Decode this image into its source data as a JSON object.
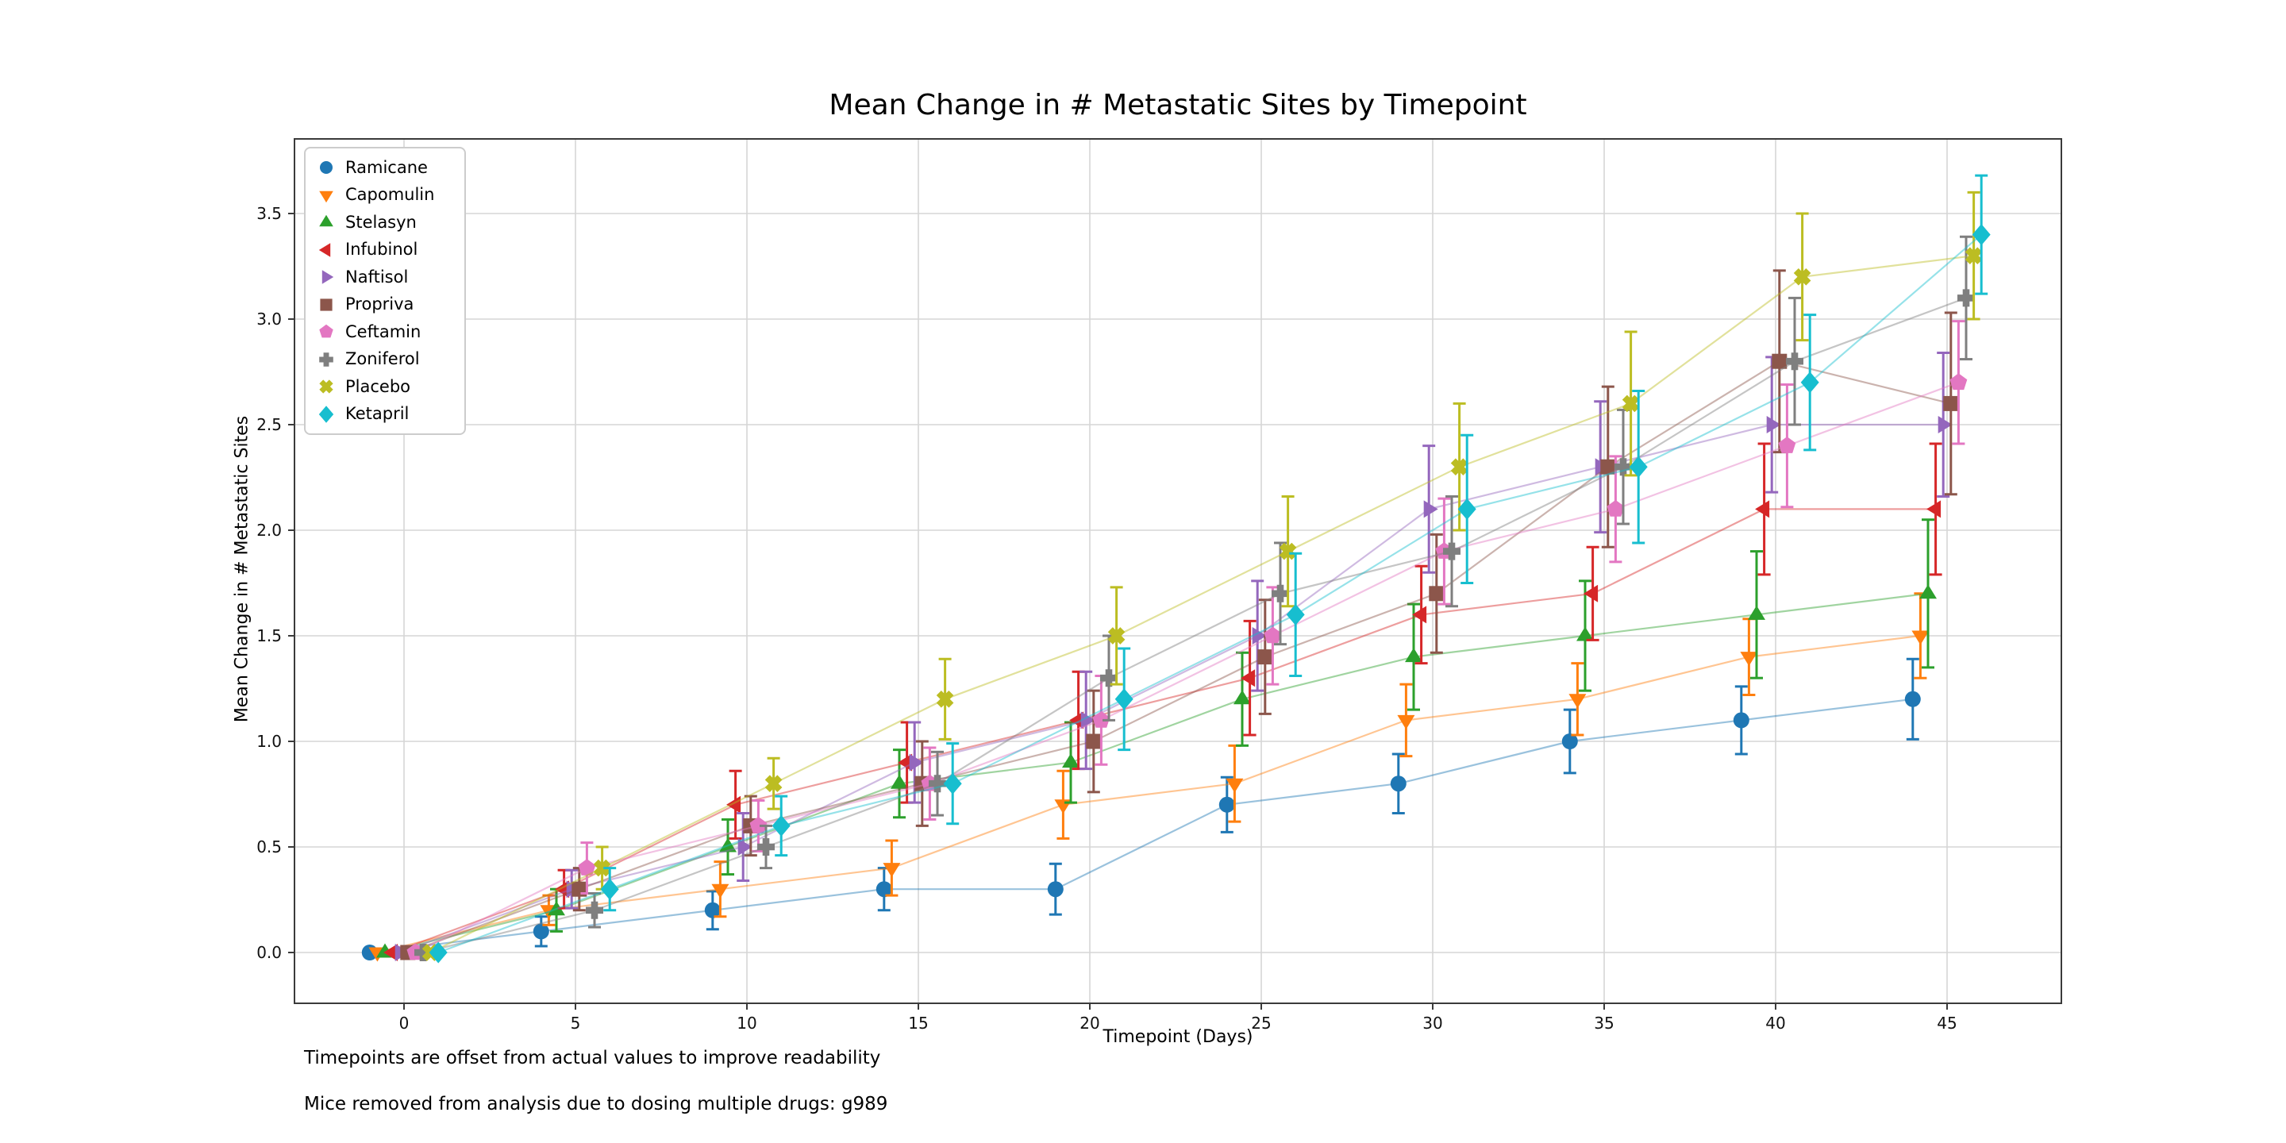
{
  "title": "Mean Change in # Metastatic Sites by Timepoint",
  "axes": {
    "xlabel": "Timepoint (Days)",
    "ylabel": "Mean Change in  # Metastatic Sites",
    "x_ticks": [
      0,
      5,
      10,
      15,
      20,
      25,
      30,
      35,
      40,
      45
    ],
    "x_tick_labels": [
      "0",
      "5",
      "10",
      "15",
      "20",
      "25",
      "30",
      "35",
      "40",
      "45"
    ],
    "y_ticks": [
      0,
      0.5,
      1,
      1.5,
      2,
      2.5,
      3,
      3.5
    ],
    "y_tick_labels": [
      "0.0",
      "0.5",
      "1.0",
      "1.5",
      "2.0",
      "2.5",
      "3.0",
      "3.5"
    ]
  },
  "annotations": {
    "offset_note": "Timepoints are offset from actual values to improve readability",
    "removed_note": "Mice removed from analysis due to dosing multiple drugs: g989"
  },
  "chart_data": {
    "type": "line",
    "title": "Mean Change in # Metastatic Sites by Timepoint",
    "xlabel": "Timepoint (Days)",
    "ylabel": "Mean Change in  # Metastatic Sites",
    "x": [
      0,
      5,
      10,
      15,
      20,
      25,
      30,
      35,
      40,
      45
    ],
    "xlim": [
      -3.2,
      48.3
    ],
    "ylim": [
      -0.24,
      3.85
    ],
    "grid": true,
    "legend_position": "upper left",
    "error_bars": "sem",
    "series_x_offsets": [
      -1.0,
      -0.78,
      -0.56,
      -0.33,
      -0.11,
      0.11,
      0.33,
      0.56,
      0.78,
      1.0
    ],
    "series": [
      {
        "name": "Ramicane",
        "color": "#1f77b4",
        "marker": "circle",
        "values": [
          0,
          0.1,
          0.2,
          0.3,
          0.3,
          0.7,
          0.8,
          1.0,
          1.1,
          1.2
        ],
        "sem": [
          0,
          0.07,
          0.09,
          0.1,
          0.12,
          0.13,
          0.14,
          0.15,
          0.16,
          0.19
        ]
      },
      {
        "name": "Capomulin",
        "color": "#ff7f0e",
        "marker": "triangle-down",
        "values": [
          0,
          0.2,
          0.3,
          0.4,
          0.7,
          0.8,
          1.1,
          1.2,
          1.4,
          1.5
        ],
        "sem": [
          0,
          0.07,
          0.13,
          0.13,
          0.16,
          0.18,
          0.17,
          0.17,
          0.18,
          0.2
        ]
      },
      {
        "name": "Stelasyn",
        "color": "#2ca02c",
        "marker": "triangle-up",
        "values": [
          0,
          0.2,
          0.5,
          0.8,
          0.9,
          1.2,
          1.4,
          1.5,
          1.6,
          1.7
        ],
        "sem": [
          0,
          0.1,
          0.13,
          0.16,
          0.19,
          0.22,
          0.25,
          0.26,
          0.3,
          0.35
        ]
      },
      {
        "name": "Infubinol",
        "color": "#d62728",
        "marker": "triangle-left",
        "values": [
          0,
          0.3,
          0.7,
          0.9,
          1.1,
          1.3,
          1.6,
          1.7,
          2.1,
          2.1
        ],
        "sem": [
          0,
          0.09,
          0.16,
          0.19,
          0.23,
          0.27,
          0.23,
          0.22,
          0.31,
          0.31
        ]
      },
      {
        "name": "Naftisol",
        "color": "#9467bd",
        "marker": "triangle-right",
        "values": [
          0,
          0.3,
          0.5,
          0.9,
          1.1,
          1.5,
          2.1,
          2.3,
          2.5,
          2.5
        ],
        "sem": [
          0,
          0.09,
          0.16,
          0.19,
          0.23,
          0.26,
          0.3,
          0.31,
          0.32,
          0.34
        ]
      },
      {
        "name": "Propriva",
        "color": "#8c564b",
        "marker": "square",
        "values": [
          0,
          0.3,
          0.6,
          0.8,
          1.0,
          1.4,
          1.7,
          2.3,
          2.8,
          2.6
        ],
        "sem": [
          0,
          0.1,
          0.14,
          0.2,
          0.24,
          0.27,
          0.28,
          0.38,
          0.43,
          0.43
        ]
      },
      {
        "name": "Ceftamin",
        "color": "#e377c2",
        "marker": "pentagon",
        "values": [
          0,
          0.4,
          0.6,
          0.8,
          1.1,
          1.5,
          1.9,
          2.1,
          2.4,
          2.7
        ],
        "sem": [
          0,
          0.12,
          0.12,
          0.17,
          0.21,
          0.23,
          0.25,
          0.25,
          0.29,
          0.29
        ]
      },
      {
        "name": "Zoniferol",
        "color": "#7f7f7f",
        "marker": "plus",
        "values": [
          0,
          0.2,
          0.5,
          0.8,
          1.3,
          1.7,
          1.9,
          2.3,
          2.8,
          3.1
        ],
        "sem": [
          0,
          0.08,
          0.1,
          0.15,
          0.2,
          0.24,
          0.26,
          0.27,
          0.3,
          0.29
        ]
      },
      {
        "name": "Placebo",
        "color": "#bcbd22",
        "marker": "x",
        "values": [
          0,
          0.4,
          0.8,
          1.2,
          1.5,
          1.9,
          2.3,
          2.6,
          3.2,
          3.3
        ],
        "sem": [
          0,
          0.1,
          0.12,
          0.19,
          0.23,
          0.26,
          0.3,
          0.34,
          0.3,
          0.3
        ]
      },
      {
        "name": "Ketapril",
        "color": "#17becf",
        "marker": "diamond",
        "values": [
          0,
          0.3,
          0.6,
          0.8,
          1.2,
          1.6,
          2.1,
          2.3,
          2.7,
          3.4
        ],
        "sem": [
          0,
          0.1,
          0.14,
          0.19,
          0.24,
          0.29,
          0.35,
          0.36,
          0.32,
          0.28
        ]
      }
    ]
  }
}
